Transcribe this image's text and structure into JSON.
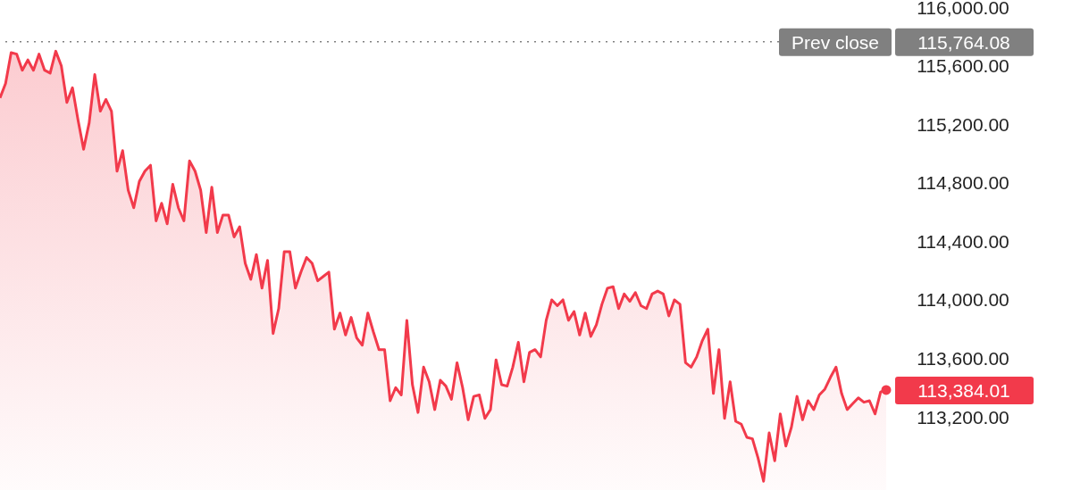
{
  "chart_data": {
    "type": "area",
    "categories": [
      null,
      null,
      null,
      null,
      null,
      null,
      null,
      null,
      null,
      null,
      null,
      null,
      null,
      null,
      null,
      null,
      null,
      null,
      null,
      null,
      null,
      null,
      null,
      null,
      null,
      null,
      null,
      null,
      null,
      null,
      null,
      null,
      null,
      null,
      null,
      null,
      null,
      null,
      null,
      null,
      null,
      null,
      null,
      null,
      null,
      null,
      null,
      null,
      null,
      null,
      null,
      null,
      null,
      null,
      null,
      null,
      null,
      null,
      null,
      null,
      null,
      null,
      null,
      null,
      null,
      null,
      null,
      null,
      null,
      null,
      null,
      null,
      null,
      null,
      null,
      null,
      null,
      null,
      null,
      null,
      null,
      null,
      null,
      null,
      null,
      null,
      null,
      null,
      null,
      null,
      null,
      null,
      null,
      null,
      null,
      null,
      null,
      null,
      null,
      null,
      null,
      null,
      null,
      null,
      null,
      null,
      null,
      null,
      null,
      null,
      null,
      null,
      null,
      null,
      null,
      null,
      null,
      null,
      null,
      null,
      null,
      null,
      null,
      null,
      null,
      null,
      null,
      null,
      null,
      null,
      null,
      null,
      null,
      null,
      null,
      null,
      null,
      null,
      null,
      null,
      null,
      null,
      null,
      null,
      null,
      null,
      null,
      null,
      null,
      null,
      null,
      null,
      null,
      null,
      null,
      null,
      null,
      null,
      null,
      null
    ],
    "series": [
      {
        "color": "#f23a4b",
        "values": [
          115380,
          115480,
          115690,
          115680,
          115570,
          115640,
          115570,
          115680,
          115570,
          115550,
          115700,
          115600,
          115350,
          115450,
          115230,
          115030,
          115210,
          115540,
          115290,
          115370,
          115290,
          114880,
          115020,
          114750,
          114630,
          114810,
          114880,
          114920,
          114540,
          114660,
          114520,
          114790,
          114630,
          114540,
          114950,
          114880,
          114750,
          114460,
          114770,
          114460,
          114580,
          114580,
          114430,
          114500,
          114250,
          114140,
          114310,
          114080,
          114270,
          113770,
          113940,
          114330,
          114330,
          114080,
          114190,
          114290,
          114250,
          114130,
          114160,
          114190,
          113800,
          113910,
          113760,
          113880,
          113740,
          113690,
          113910,
          113780,
          113660,
          113660,
          113310,
          113400,
          113350,
          113860,
          113420,
          113230,
          113540,
          113440,
          113250,
          113450,
          113410,
          113320,
          113570,
          113400,
          113180,
          113340,
          113350,
          113190,
          113250,
          113590,
          113420,
          113410,
          113540,
          113710,
          113440,
          113640,
          113660,
          113610,
          113860,
          114000,
          113960,
          114000,
          113860,
          113920,
          113760,
          113910,
          113750,
          113830,
          113970,
          114080,
          114090,
          113940,
          114040,
          113990,
          114050,
          113960,
          113940,
          114040,
          114060,
          114040,
          113890,
          114000,
          113970,
          113570,
          113540,
          113610,
          113720,
          113800,
          113360,
          113660,
          113190,
          113440,
          113170,
          113150,
          113060,
          113050,
          112920,
          112760,
          113090,
          112900,
          113220,
          113000,
          113130,
          113340,
          113180,
          113310,
          113250,
          113350,
          113390,
          113470,
          113540,
          113360,
          113250,
          113290,
          113330,
          113300,
          113310,
          113220,
          113370,
          113384.01
        ],
        "value_labels": [
          null,
          null,
          null,
          null,
          null,
          null,
          null,
          null,
          null,
          null,
          null,
          null,
          null,
          null,
          null,
          null,
          null,
          null,
          null,
          null,
          null,
          null,
          null,
          null,
          null,
          null,
          null,
          null,
          null,
          null,
          null,
          null,
          null,
          null,
          null,
          null,
          null,
          null,
          null,
          null,
          null,
          null,
          null,
          null,
          null,
          null,
          null,
          null,
          null,
          null,
          null,
          null,
          null,
          null,
          null,
          null,
          null,
          null,
          null,
          null,
          null,
          null,
          null,
          null,
          null,
          null,
          null,
          null,
          null,
          null,
          null,
          null,
          null,
          null,
          null,
          null,
          null,
          null,
          null,
          null,
          null,
          null,
          null,
          null,
          null,
          null,
          null,
          null,
          null,
          null,
          null,
          null,
          null,
          null,
          null,
          null,
          null,
          null,
          null,
          null,
          null,
          null,
          null,
          null,
          null,
          null,
          null,
          null,
          null,
          null,
          null,
          null,
          null,
          null,
          null,
          null,
          null,
          null,
          null,
          null,
          null,
          null,
          null,
          null,
          null,
          null,
          null,
          null,
          null,
          null,
          null,
          null,
          null,
          null,
          null,
          null,
          null,
          null,
          null,
          null,
          null,
          null,
          null,
          null,
          null,
          null,
          null,
          null,
          null,
          null,
          null,
          null,
          null,
          null,
          null,
          null,
          null,
          null,
          null,
          "113,384.01"
        ]
      }
    ],
    "ylim": [
      112700,
      116050
    ],
    "yticks": [
      {
        "value": 113200,
        "label": "113,200.00"
      },
      {
        "value": 113600,
        "label": "113,600.00"
      },
      {
        "value": 114000,
        "label": "114,000.00"
      },
      {
        "value": 114400,
        "label": "114,400.00"
      },
      {
        "value": 114800,
        "label": "114,800.00"
      },
      {
        "value": 115200,
        "label": "115,200.00"
      },
      {
        "value": 115600,
        "label": "115,600.00"
      },
      {
        "value": 116000,
        "label": "116,000.00"
      }
    ],
    "ref_lines": [
      {
        "axis": "y",
        "value": 115764.08,
        "label": "Prev close",
        "line_style": "dotted",
        "color": "#808080"
      }
    ],
    "annotations": [
      "115,764.08"
    ],
    "grid": false,
    "legend": false,
    "marker": "none",
    "tick_labels": "y"
  }
}
